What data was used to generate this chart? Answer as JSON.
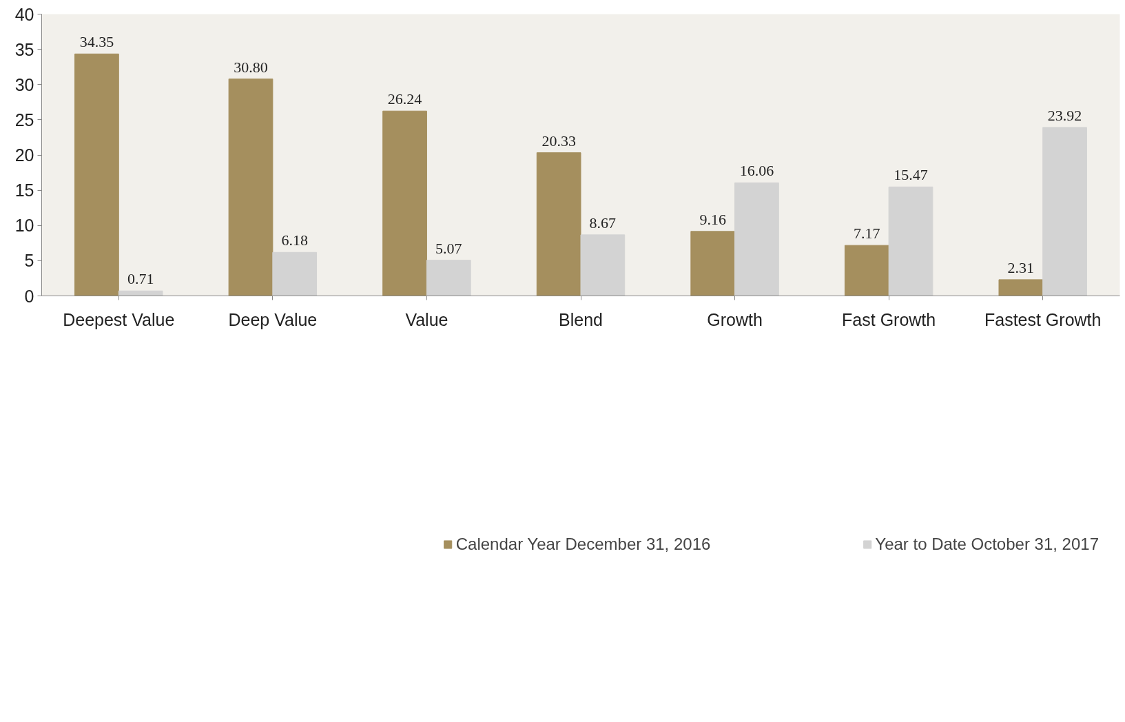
{
  "chart_data": {
    "type": "bar",
    "categories": [
      "Deepest Value",
      "Deep Value",
      "Value",
      "Blend",
      "Growth",
      "Fast Growth",
      "Fastest Growth"
    ],
    "series": [
      {
        "name": "Calendar Year December 31, 2016",
        "color": "#a58f5e",
        "values": [
          34.35,
          30.8,
          26.24,
          20.33,
          9.16,
          7.17,
          2.31
        ],
        "value_labels": [
          "34.35",
          "30.80",
          "26.24",
          "20.33",
          "9.16",
          "7.17",
          "2.31"
        ]
      },
      {
        "name": "Year to Date October 31, 2017",
        "color": "#d3d3d3",
        "values": [
          0.71,
          6.18,
          5.07,
          8.67,
          16.06,
          15.47,
          23.92
        ],
        "value_labels": [
          "0.71",
          "6.18",
          "5.07",
          "8.67",
          "16.06",
          "15.47",
          "23.92"
        ]
      }
    ],
    "ylim": [
      0,
      40
    ],
    "yticks": [
      0,
      5,
      10,
      15,
      20,
      25,
      30,
      35,
      40
    ],
    "grid": false,
    "legend": "bottom"
  }
}
